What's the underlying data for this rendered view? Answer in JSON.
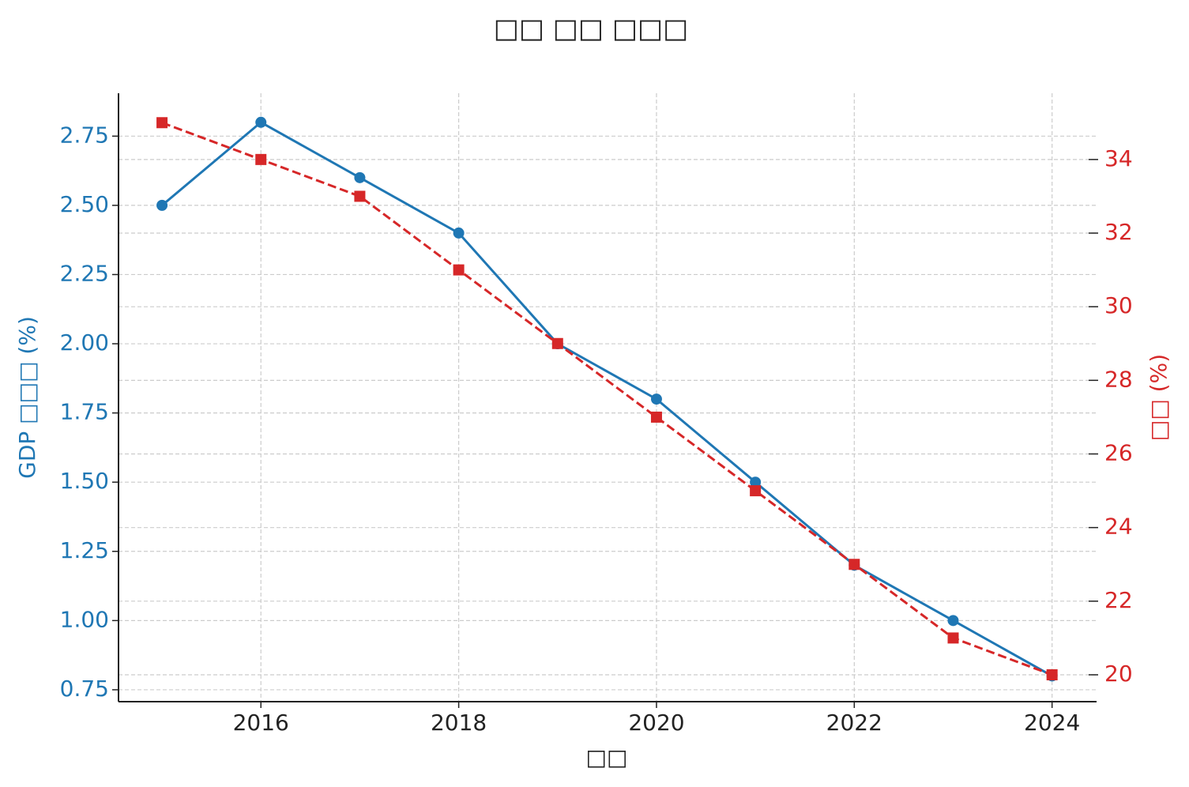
{
  "chart_data": {
    "type": "line",
    "title": "□□ □□ □□□",
    "x_label": "□□",
    "y_label": "GDP □□□ (%)",
    "y2_label": "□□ (%)",
    "x": [
      2015,
      2016,
      2017,
      2018,
      2019,
      2020,
      2021,
      2022,
      2023,
      2024
    ],
    "xlim": [
      2014.56,
      2024.45
    ],
    "xticks": [
      2016,
      2018,
      2020,
      2022,
      2024
    ],
    "ylim": [
      0.707,
      2.905
    ],
    "yticks": [
      0.75,
      {
        "value": 1.0,
        "label": "1.00"
      },
      1.25,
      {
        "value": 1.5,
        "label": "1.50"
      },
      1.75,
      {
        "value": 2.0,
        "label": "2.00"
      },
      2.25,
      {
        "value": 2.5,
        "label": "2.50"
      },
      2.75
    ],
    "y2lim": [
      19.27,
      35.8
    ],
    "y2ticks": [
      20,
      22,
      24,
      26,
      28,
      30,
      32,
      34
    ],
    "grid": true,
    "series": [
      {
        "name": "GDP □□□ (%)",
        "color": "#1f77b4",
        "marker": "circle",
        "dash": "solid",
        "values": [
          2.5,
          2.8,
          2.6,
          2.4,
          2.0,
          1.8,
          1.5,
          1.2,
          1.0,
          0.8
        ]
      },
      {
        "name": "□□ (%)",
        "color": "#d62728",
        "marker": "square",
        "dash": "dashed",
        "axis": "y2",
        "values": [
          35,
          34,
          33,
          31,
          29,
          27,
          25,
          23,
          21,
          20
        ]
      }
    ]
  }
}
